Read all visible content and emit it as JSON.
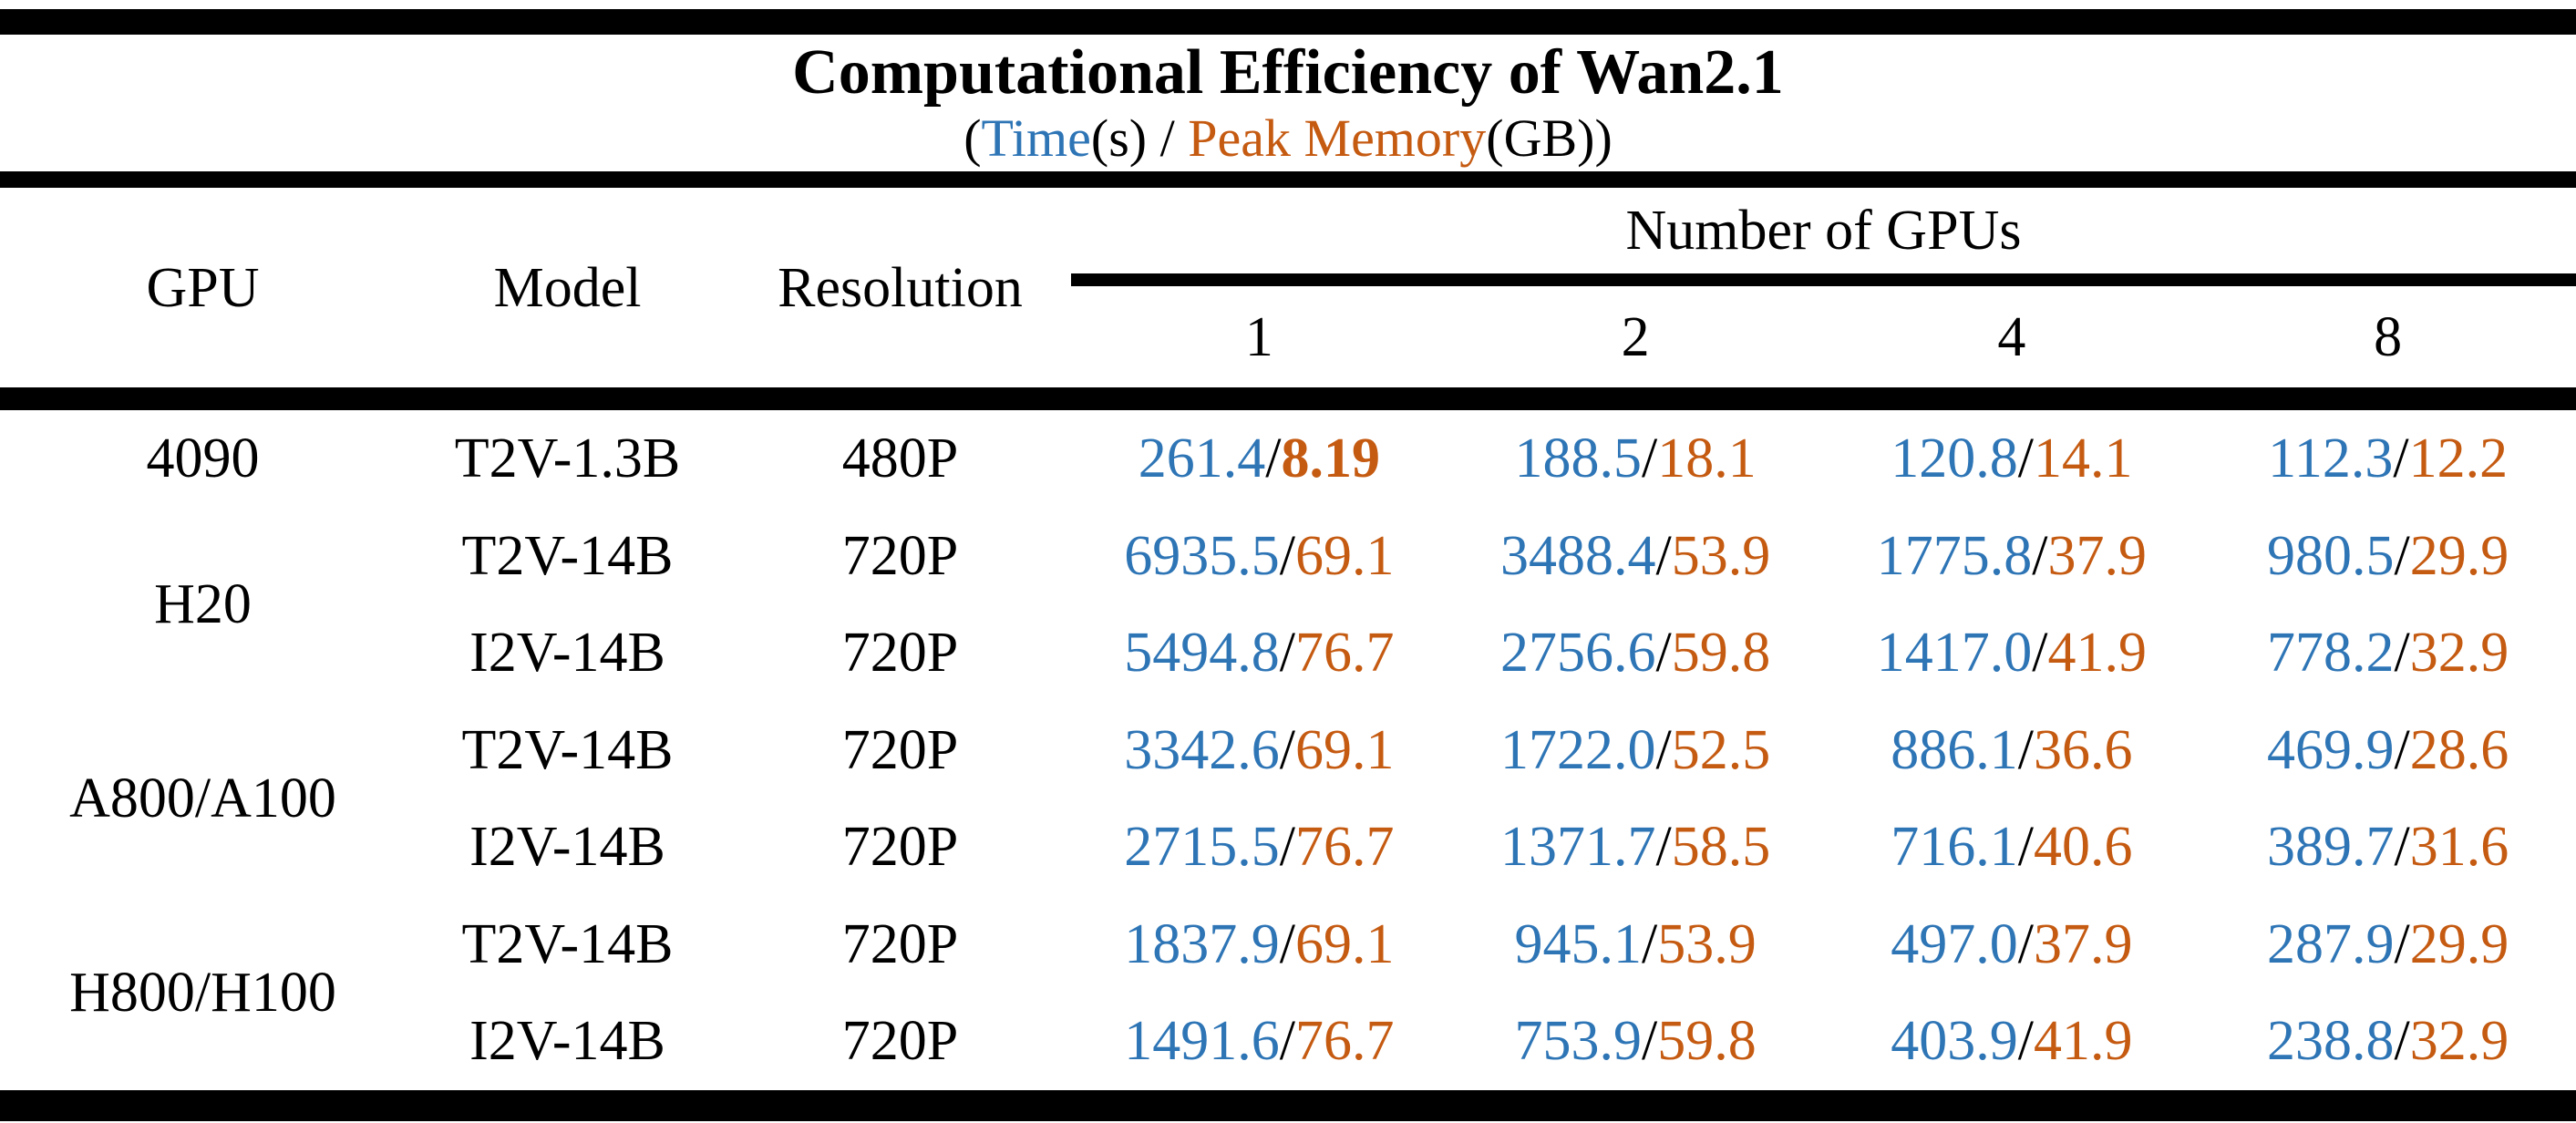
{
  "title": "Computational Efficiency of Wan2.1",
  "subtitle": {
    "prefix": "(",
    "time_label": "Time",
    "time_unit": "(s)",
    "separator": " / ",
    "memory_label": "Peak Memory",
    "memory_unit": "(GB)",
    "suffix": ")"
  },
  "colors": {
    "time": "#2E75B6",
    "memory": "#C55A11",
    "text": "#000000",
    "background": "#FFFFFF",
    "rules": "#000000"
  },
  "header": {
    "gpu": "GPU",
    "model": "Model",
    "resolution": "Resolution",
    "gpu_count_group": "Number of GPUs",
    "gpu_counts": [
      "1",
      "2",
      "4",
      "8"
    ]
  },
  "value_separator": "/",
  "rows": [
    {
      "gpu": "4090",
      "gpu_rowspan": 1,
      "model": "T2V-1.3B",
      "resolution": "480P",
      "cells": [
        {
          "time": "261.4",
          "memory": "8.19",
          "memory_bold": true
        },
        {
          "time": "188.5",
          "memory": "18.1"
        },
        {
          "time": "120.8",
          "memory": "14.1"
        },
        {
          "time": "112.3",
          "memory": "12.2"
        }
      ]
    },
    {
      "gpu": "H20",
      "gpu_rowspan": 2,
      "model": "T2V-14B",
      "resolution": "720P",
      "cells": [
        {
          "time": "6935.5",
          "memory": "69.1"
        },
        {
          "time": "3488.4",
          "memory": "53.9"
        },
        {
          "time": "1775.8",
          "memory": "37.9"
        },
        {
          "time": "980.5",
          "memory": "29.9"
        }
      ]
    },
    {
      "model": "I2V-14B",
      "resolution": "720P",
      "cells": [
        {
          "time": "5494.8",
          "memory": "76.7"
        },
        {
          "time": "2756.6",
          "memory": "59.8"
        },
        {
          "time": "1417.0",
          "memory": "41.9"
        },
        {
          "time": "778.2",
          "memory": "32.9"
        }
      ]
    },
    {
      "gpu": "A800/A100",
      "gpu_rowspan": 2,
      "model": "T2V-14B",
      "resolution": "720P",
      "cells": [
        {
          "time": "3342.6",
          "memory": "69.1"
        },
        {
          "time": "1722.0",
          "memory": "52.5"
        },
        {
          "time": "886.1",
          "memory": "36.6"
        },
        {
          "time": "469.9",
          "memory": "28.6"
        }
      ]
    },
    {
      "model": "I2V-14B",
      "resolution": "720P",
      "cells": [
        {
          "time": "2715.5",
          "memory": "76.7"
        },
        {
          "time": "1371.7",
          "memory": "58.5"
        },
        {
          "time": "716.1",
          "memory": "40.6"
        },
        {
          "time": "389.7",
          "memory": "31.6"
        }
      ]
    },
    {
      "gpu": "H800/H100",
      "gpu_rowspan": 2,
      "model": "T2V-14B",
      "resolution": "720P",
      "cells": [
        {
          "time": "1837.9",
          "memory": "69.1"
        },
        {
          "time": "945.1",
          "memory": "53.9"
        },
        {
          "time": "497.0",
          "memory": "37.9"
        },
        {
          "time": "287.9",
          "memory": "29.9"
        }
      ]
    },
    {
      "model": "I2V-14B",
      "resolution": "720P",
      "cells": [
        {
          "time": "1491.6",
          "memory": "76.7"
        },
        {
          "time": "753.9",
          "memory": "59.8"
        },
        {
          "time": "403.9",
          "memory": "41.9"
        },
        {
          "time": "238.8",
          "memory": "32.9"
        }
      ]
    }
  ]
}
